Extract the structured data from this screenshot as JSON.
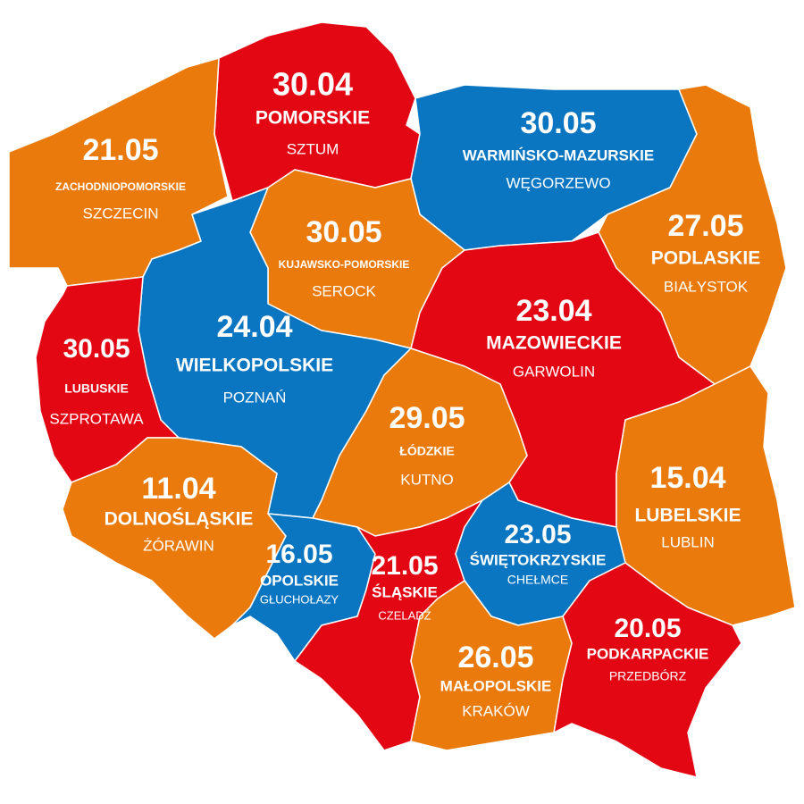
{
  "regions": [
    {
      "date": "30.04",
      "name": "POMORSKIE",
      "city": "SZTUM",
      "color": "#e30613"
    },
    {
      "date": "30.05",
      "name": "WARMIŃSKO-MAZURSKIE",
      "city": "WĘGORZEWO",
      "color": "#0a76c2"
    },
    {
      "date": "21.05",
      "name": "ZACHODNIOPOMORSKIE",
      "city": "SZCZECIN",
      "color": "#ea7a0c"
    },
    {
      "date": "27.05",
      "name": "PODLASKIE",
      "city": "BIAŁYSTOK",
      "color": "#ea7a0c"
    },
    {
      "date": "30.05",
      "name": "KUJAWSKO-POMORSKIE",
      "city": "SEROCK",
      "color": "#ea7a0c"
    },
    {
      "date": "24.04",
      "name": "WIELKOPOLSKIE",
      "city": "POZNAŃ",
      "color": "#0a76c2"
    },
    {
      "date": "23.04",
      "name": "MAZOWIECKIE",
      "city": "GARWOLIN",
      "color": "#e30613"
    },
    {
      "date": "30.05",
      "name": "LUBUSKIE",
      "city": "SZPROTAWA",
      "color": "#e30613"
    },
    {
      "date": "29.05",
      "name": "ŁÓDZKIE",
      "city": "KUTNO",
      "color": "#ea7a0c"
    },
    {
      "date": "15.04",
      "name": "LUBELSKIE",
      "city": "LUBLIN",
      "color": "#ea7a0c"
    },
    {
      "date": "11.04",
      "name": "DOLNOŚLĄSKIE",
      "city": "ŻÓRAWIN",
      "color": "#ea7a0c"
    },
    {
      "date": "16.05",
      "name": "OPOLSKIE",
      "city": "GŁUCHOŁAZY",
      "color": "#0a76c2"
    },
    {
      "date": "21.05",
      "name": "ŚLĄSKIE",
      "city": "CZELADŹ",
      "color": "#e30613"
    },
    {
      "date": "23.05",
      "name": "ŚWIĘTOKRZYSKIE",
      "city": "CHEŁMCE",
      "color": "#0a76c2"
    },
    {
      "date": "20.05",
      "name": "PODKARPACKIE",
      "city": "PRZEDBÓRZ",
      "color": "#e30613"
    },
    {
      "date": "26.05",
      "name": "MAŁOPOLSKIE",
      "city": "KRAKÓW",
      "color": "#ea7a0c"
    }
  ]
}
